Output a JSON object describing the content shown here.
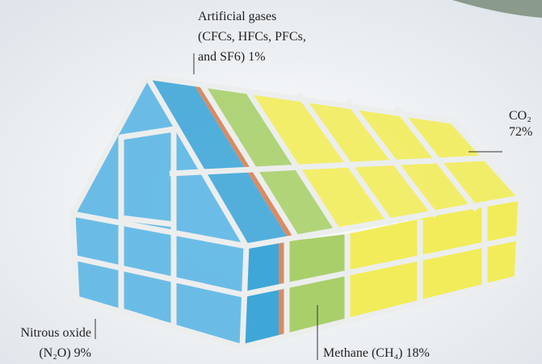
{
  "annotations": [
    {
      "lines": [
        "Artificial gases",
        "(CFCs, HFCs, PFCs,",
        "and SF6) 1%"
      ]
    },
    {
      "lines": [
        "CO₂",
        "72%"
      ]
    },
    {
      "lines": [
        "Nitrous oxide",
        "(N₂O) 9%"
      ]
    },
    {
      "lines": [
        "Methane (CH₄)  18%"
      ]
    }
  ]
}
